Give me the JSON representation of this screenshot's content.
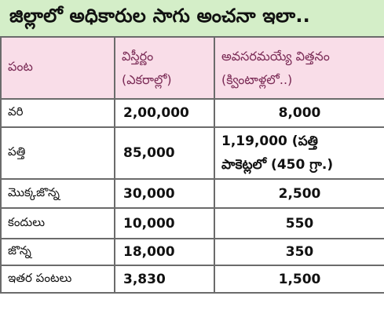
{
  "title": "జిల్లాలో అధికారుల సాగు అంచనా ఇలా..",
  "colors": {
    "title_background": "#d4eec8",
    "header_background": "#f9dde8",
    "header_text": "#7a2a55",
    "border": "#6b6b6b"
  },
  "table": {
    "headers": {
      "crop": "పంట",
      "area_line1": "విస్తీర్ణం",
      "area_line2": "(ఎకరాల్లో)",
      "seed_line1": "అవసరమయ్యే విత్తనం",
      "seed_line2": "(క్వింటాళ్లలో..)"
    },
    "rows": [
      {
        "crop": "వరి",
        "area": "2,00,000",
        "seed": "8,000"
      },
      {
        "crop": "పత్తి",
        "area": "85,000",
        "seed_line1": "1,19,000 (పత్తి",
        "seed_line2": "పాకెట్లలో (450 గ్రా.)"
      },
      {
        "crop": "మొక్కజొన్న",
        "area": "30,000",
        "seed": "2,500"
      },
      {
        "crop": "కందులు",
        "area": "10,000",
        "seed": "550"
      },
      {
        "crop": "జొన్న",
        "area": "18,000",
        "seed": "350"
      },
      {
        "crop": "ఇతర పంటలు",
        "area": "3,830",
        "seed": "1,500"
      }
    ]
  }
}
